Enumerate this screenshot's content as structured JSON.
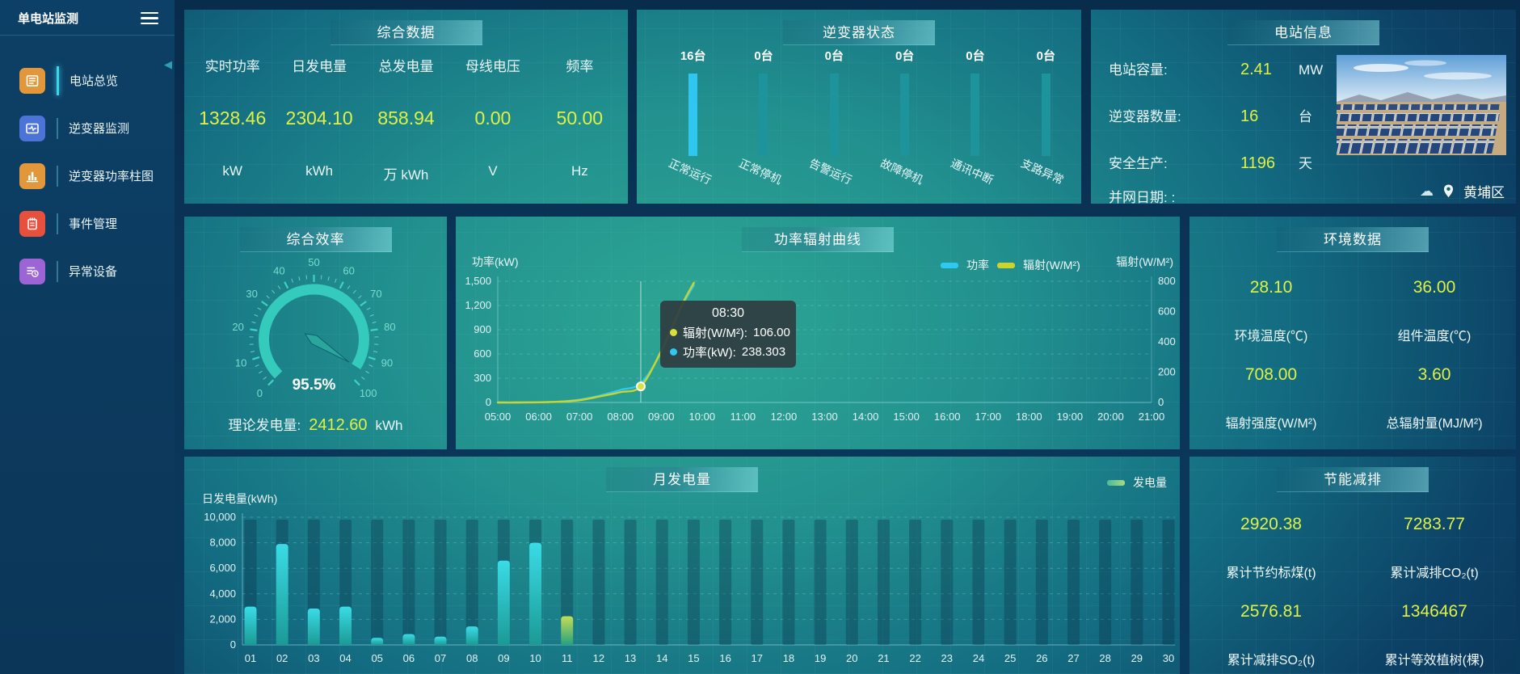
{
  "app": {
    "title": "单电站监测"
  },
  "icons": {
    "collapse_left": "◀",
    "cloud": "☁"
  },
  "sidebar": {
    "items": [
      {
        "label": "电站总览",
        "color": "#e2973a",
        "active": true
      },
      {
        "label": "逆变器监测",
        "color": "#4c74d8",
        "active": false
      },
      {
        "label": "逆变器功率柱图",
        "color": "#e2973a",
        "active": false
      },
      {
        "label": "事件管理",
        "color": "#e8503e",
        "active": false
      },
      {
        "label": "异常设备",
        "color": "#9c64d4",
        "active": false
      }
    ]
  },
  "summary": {
    "title": "综合数据",
    "metrics": [
      {
        "label": "实时功率",
        "value": "1328.46",
        "unit": "kW"
      },
      {
        "label": "日发电量",
        "value": "2304.10",
        "unit": "kWh"
      },
      {
        "label": "总发电量",
        "value": "858.94",
        "unit": "万 kWh"
      },
      {
        "label": "母线电压",
        "value": "0.00",
        "unit": "V"
      },
      {
        "label": "频率",
        "value": "50.00",
        "unit": "Hz"
      }
    ]
  },
  "inverter_status": {
    "title": "逆变器状态",
    "items": [
      {
        "count": "16台",
        "label": "正常运行",
        "highlight": true
      },
      {
        "count": "0台",
        "label": "正常停机",
        "highlight": false
      },
      {
        "count": "0台",
        "label": "告警运行",
        "highlight": false
      },
      {
        "count": "0台",
        "label": "故障停机",
        "highlight": false
      },
      {
        "count": "0台",
        "label": "通讯中断",
        "highlight": false
      },
      {
        "count": "0台",
        "label": "支路异常",
        "highlight": false
      }
    ]
  },
  "station_info": {
    "title": "电站信息",
    "rows": [
      {
        "label": "电站容量:",
        "value": "2.41",
        "unit": "MW"
      },
      {
        "label": "逆变器数量:",
        "value": "16",
        "unit": "台"
      },
      {
        "label": "安全生产:",
        "value": "1196",
        "unit": "天"
      },
      {
        "label": "并网日期:  :",
        "value": "",
        "unit": ""
      }
    ],
    "location": "黄埔区"
  },
  "efficiency": {
    "title": "综合效率",
    "gauge_value": 95.5,
    "gauge_label": "95.5%",
    "gauge_ticks": [
      0,
      10,
      20,
      30,
      40,
      50,
      60,
      70,
      80,
      90,
      100
    ],
    "footer_label": "理论发电量:",
    "footer_value": "2412.60",
    "footer_unit": "kWh"
  },
  "env": {
    "title": "环境数据",
    "stats": [
      {
        "value": "28.10",
        "label": "环境温度(℃)"
      },
      {
        "value": "36.00",
        "label": "组件温度(℃)"
      },
      {
        "value": "708.00",
        "label": "辐射强度(W/M²)"
      },
      {
        "value": "3.60",
        "label": "总辐射量(MJ/M²)"
      }
    ]
  },
  "saving": {
    "title": "节能减排",
    "stats": [
      {
        "value": "2920.38",
        "label": "累计节约标煤(t)"
      },
      {
        "value": "7283.77",
        "label": "累计减排CO₂(t)"
      },
      {
        "value": "2576.81",
        "label": "累计减排SO₂(t)"
      },
      {
        "value": "1346467",
        "label": "累计等效植树(棵)"
      }
    ]
  },
  "chart_data": [
    {
      "id": "power-radiation",
      "type": "line",
      "title": "功率辐射曲线",
      "x_range": [
        5,
        21
      ],
      "x_hours": [
        5,
        5.5,
        6,
        6.5,
        7,
        7.5,
        8,
        8.5,
        9,
        9.5,
        9.8
      ],
      "x_tick_labels": [
        "05:00",
        "06:00",
        "07:00",
        "08:00",
        "09:00",
        "10:00",
        "11:00",
        "12:00",
        "13:00",
        "14:00",
        "15:00",
        "16:00",
        "17:00",
        "18:00",
        "19:00",
        "20:00",
        "21:00"
      ],
      "series": [
        {
          "name": "功率",
          "color": "#2fc8f2",
          "axis": "left",
          "values": [
            0,
            0,
            3,
            10,
            35,
            85,
            155,
            238.303,
            620,
            1180,
            1450
          ]
        },
        {
          "name": "辐射(W/M²)",
          "color": "#ccd42c",
          "axis": "right",
          "values": [
            0,
            0,
            1,
            5,
            15,
            40,
            68,
            106,
            340,
            640,
            790
          ]
        }
      ],
      "left_axis": {
        "label": "功率(kW)",
        "max": 1500,
        "tick_labels": [
          "0",
          "300",
          "600",
          "900",
          "1,200",
          "1,500"
        ]
      },
      "right_axis": {
        "label": "辐射(W/M²)",
        "max": 800,
        "tick_labels": [
          "0",
          "200",
          "400",
          "600",
          "800"
        ]
      },
      "grid": "dashed",
      "legend_position": "top-right",
      "tooltip": {
        "time": "08:30",
        "anchor_hour": 8.5,
        "rows": [
          {
            "label": "辐射(W/M²):",
            "value": "106.00",
            "color": "#d8e23c"
          },
          {
            "label": "功率(kW):",
            "value": "238.303",
            "color": "#2fc8f2"
          }
        ]
      }
    },
    {
      "id": "monthly-generation",
      "type": "bar",
      "title": "月发电量",
      "ylabel": "日发电量(kWh)",
      "legend": "发电量",
      "legend_colors": {
        "left": "#49b99b",
        "right": "#a9dc7d"
      },
      "categories": [
        "01",
        "02",
        "03",
        "04",
        "05",
        "06",
        "07",
        "08",
        "09",
        "10",
        "11",
        "12",
        "13",
        "14",
        "15",
        "16",
        "17",
        "18",
        "19",
        "20",
        "21",
        "22",
        "23",
        "24",
        "25",
        "26",
        "27",
        "28",
        "29",
        "30"
      ],
      "values": [
        3000,
        7900,
        2850,
        3000,
        550,
        850,
        650,
        1450,
        6600,
        8000,
        2250,
        0,
        0,
        0,
        0,
        0,
        0,
        0,
        0,
        0,
        0,
        0,
        0,
        0,
        0,
        0,
        0,
        0,
        0,
        0
      ],
      "ylim": [
        0,
        10000
      ],
      "ytick_labels": [
        "0",
        "2,000",
        "4,000",
        "6,000",
        "8,000",
        "10,000"
      ],
      "bar_colors": {
        "top": "#3adce6",
        "bottom": "#1b9a95"
      },
      "special_bar": {
        "index": 10,
        "top": "#c3dd55",
        "bottom": "#28a17f"
      }
    }
  ]
}
